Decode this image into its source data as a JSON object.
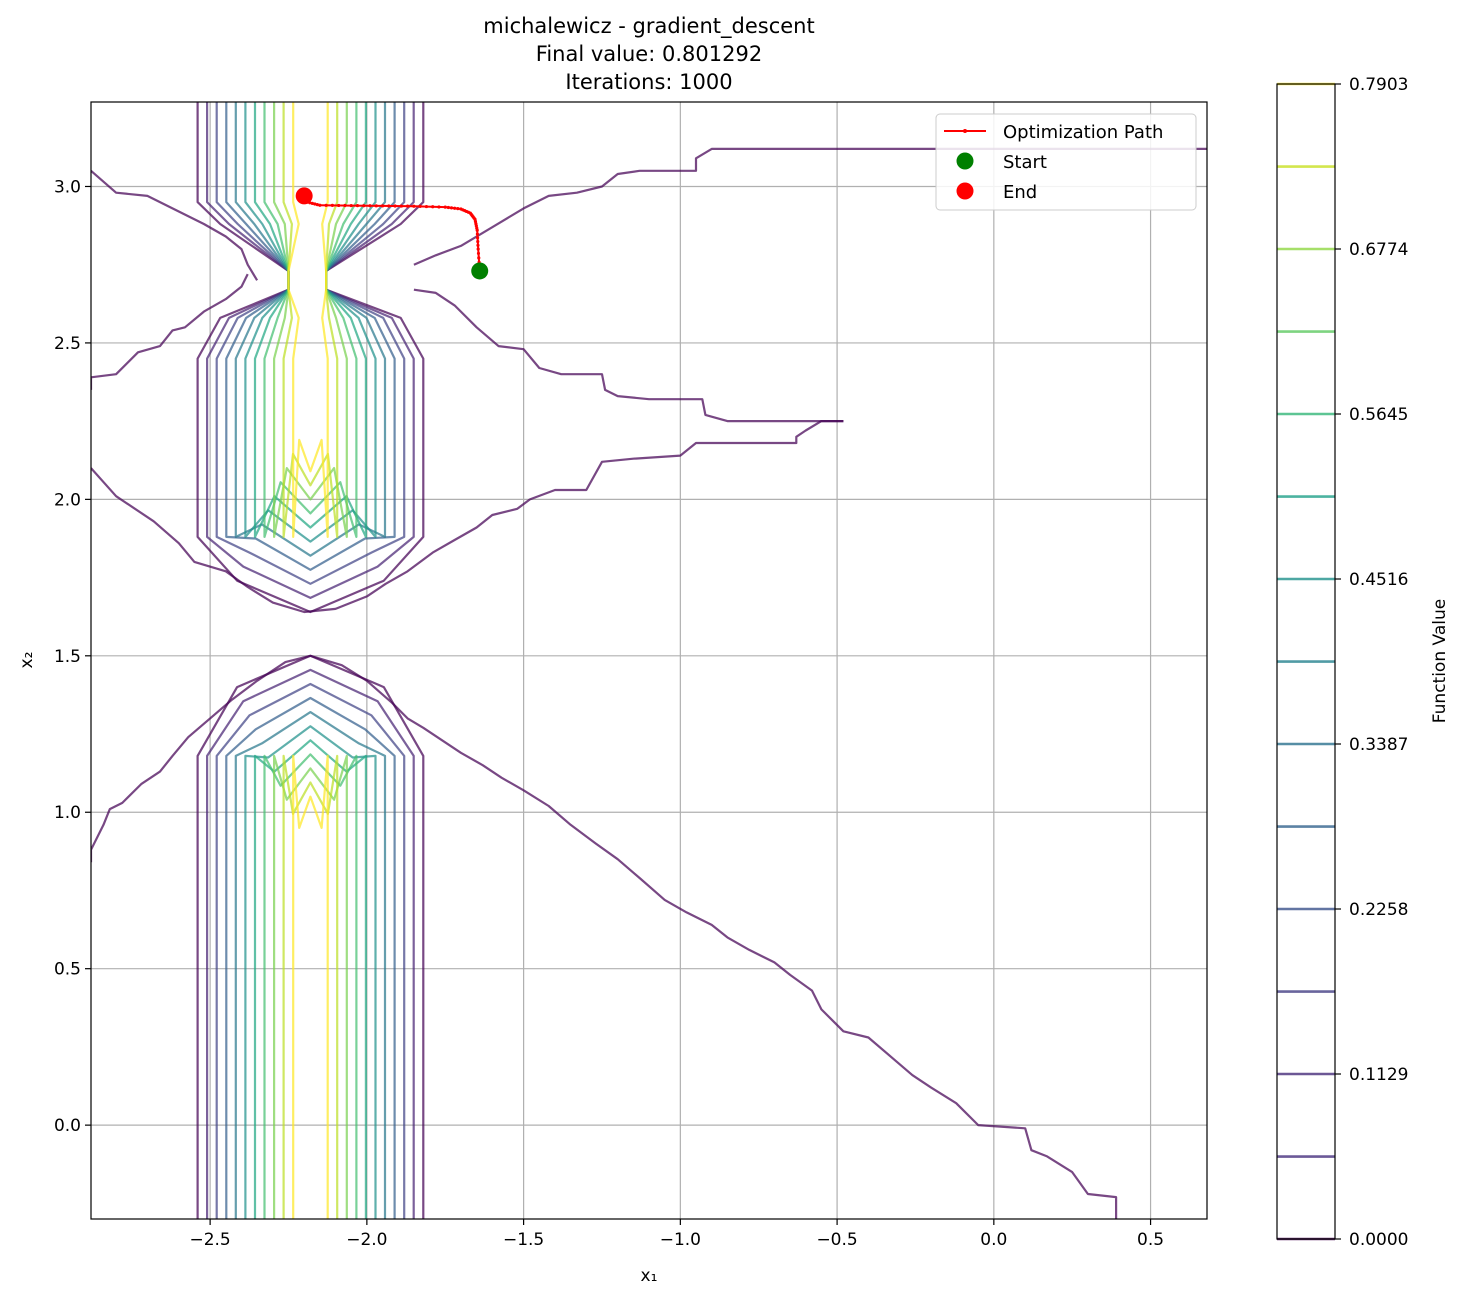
{
  "chart_data": {
    "type": "contour",
    "title_lines": [
      "michalewicz - gradient_descent",
      "Final value: 0.801292",
      "Iterations: 1000"
    ],
    "xlabel": "x₁",
    "ylabel": "x₂",
    "xlim": [
      -2.88,
      0.68
    ],
    "ylim": [
      -0.3,
      3.27
    ],
    "x_ticks": [
      -2.5,
      -2.0,
      -1.5,
      -1.0,
      -0.5,
      0.0,
      0.5
    ],
    "x_tick_labels": [
      "−2.5",
      "−2.0",
      "−1.5",
      "−1.0",
      "−0.5",
      "0.0",
      "0.5"
    ],
    "y_ticks": [
      0.0,
      0.5,
      1.0,
      1.5,
      2.0,
      2.5,
      3.0
    ],
    "y_tick_labels": [
      "0.0",
      "0.5",
      "1.0",
      "1.5",
      "2.0",
      "2.5",
      "3.0"
    ],
    "grid": true,
    "colorbar": {
      "label": "Function Value",
      "range": [
        0.0,
        0.7903
      ],
      "tick_values": [
        0.0,
        0.1129,
        0.2258,
        0.3387,
        0.4516,
        0.5645,
        0.6774,
        0.7903
      ],
      "tick_labels": [
        "0.0000",
        "0.1129",
        "0.2258",
        "0.3387",
        "0.4516",
        "0.5645",
        "0.6774",
        "0.7903"
      ],
      "levels": [
        0.0,
        0.0564,
        0.1129,
        0.1693,
        0.2258,
        0.2822,
        0.3387,
        0.3951,
        0.4516,
        0.508,
        0.5645,
        0.6209,
        0.6774,
        0.7338,
        0.7903
      ],
      "level_colors": [
        "#440154",
        "#482475",
        "#414487",
        "#355f8d",
        "#2a788e",
        "#21918c",
        "#22a884",
        "#44bf70",
        "#7ad151",
        "#bddf26",
        "#fde725"
      ]
    },
    "legend": {
      "placement": "top-right",
      "entries": [
        {
          "label": "Optimization Path",
          "color": "#ff0000",
          "marker": "line-with-dots"
        },
        {
          "label": "Start",
          "color": "#008000",
          "marker": "circle"
        },
        {
          "label": "End",
          "color": "#ff0000",
          "marker": "circle"
        }
      ]
    },
    "start_point": {
      "x": -1.64,
      "y": 2.73
    },
    "end_point": {
      "x": -2.2,
      "y": 2.97
    },
    "optimization_path": [
      [
        -1.64,
        2.73
      ],
      [
        -1.645,
        2.8
      ],
      [
        -1.648,
        2.86
      ],
      [
        -1.655,
        2.895
      ],
      [
        -1.67,
        2.915
      ],
      [
        -1.7,
        2.928
      ],
      [
        -1.75,
        2.934
      ],
      [
        -1.85,
        2.937
      ],
      [
        -1.95,
        2.938
      ],
      [
        -2.05,
        2.939
      ],
      [
        -2.15,
        2.94
      ],
      [
        -2.19,
        2.95
      ],
      [
        -2.2,
        2.97
      ]
    ],
    "valley_columns": [
      {
        "center_x": -2.18,
        "levels": 11,
        "level_step_x": 0.04
      }
    ],
    "contour_band_bounds": {
      "upper_band": {
        "y_bottom": 1.64,
        "y_top": 3.27
      },
      "lower_band": {
        "y_bottom": -0.3,
        "y_top": 1.5
      }
    },
    "outer_contours": [
      [
        [
          -2.88,
          3.05
        ],
        [
          -2.8,
          2.98
        ],
        [
          -2.7,
          2.97
        ],
        [
          -2.62,
          2.93
        ],
        [
          -2.52,
          2.88
        ],
        [
          -2.45,
          2.84
        ],
        [
          -2.4,
          2.8
        ],
        [
          -2.38,
          2.75
        ],
        [
          -2.35,
          2.7
        ]
      ],
      [
        [
          -2.88,
          2.35
        ],
        [
          -2.88,
          2.39
        ],
        [
          -2.8,
          2.4
        ],
        [
          -2.73,
          2.47
        ],
        [
          -2.66,
          2.49
        ],
        [
          -2.62,
          2.54
        ],
        [
          -2.58,
          2.55
        ],
        [
          -2.52,
          2.6
        ],
        [
          -2.45,
          2.64
        ],
        [
          -2.4,
          2.68
        ],
        [
          -2.38,
          2.72
        ]
      ],
      [
        [
          -1.85,
          2.67
        ],
        [
          -1.78,
          2.66
        ],
        [
          -1.72,
          2.62
        ],
        [
          -1.65,
          2.55
        ],
        [
          -1.58,
          2.49
        ],
        [
          -1.5,
          2.48
        ],
        [
          -1.45,
          2.42
        ],
        [
          -1.38,
          2.4
        ],
        [
          -1.25,
          2.4
        ],
        [
          -1.24,
          2.35
        ],
        [
          -1.2,
          2.33
        ],
        [
          -1.1,
          2.32
        ],
        [
          -0.93,
          2.32
        ],
        [
          -0.92,
          2.27
        ],
        [
          -0.85,
          2.25
        ],
        [
          -0.48,
          2.25
        ]
      ],
      [
        [
          -1.85,
          2.75
        ],
        [
          -1.78,
          2.78
        ],
        [
          -1.7,
          2.81
        ],
        [
          -1.6,
          2.87
        ],
        [
          -1.5,
          2.93
        ],
        [
          -1.42,
          2.97
        ],
        [
          -1.33,
          2.98
        ],
        [
          -1.25,
          3.0
        ],
        [
          -1.2,
          3.04
        ],
        [
          -1.13,
          3.05
        ],
        [
          -1.0,
          3.05
        ],
        [
          -0.95,
          3.05
        ],
        [
          -0.95,
          3.09
        ],
        [
          -0.9,
          3.12
        ],
        [
          -0.5,
          3.12
        ],
        [
          0.68,
          3.12
        ]
      ],
      [
        [
          -0.48,
          2.25
        ],
        [
          -0.55,
          2.25
        ],
        [
          -0.6,
          2.22
        ],
        [
          -0.63,
          2.2
        ],
        [
          -0.63,
          2.18
        ],
        [
          -0.75,
          2.18
        ],
        [
          -0.95,
          2.18
        ],
        [
          -1.0,
          2.14
        ],
        [
          -1.15,
          2.13
        ],
        [
          -1.25,
          2.12
        ],
        [
          -1.3,
          2.03
        ],
        [
          -1.4,
          2.03
        ],
        [
          -1.48,
          2.0
        ],
        [
          -1.52,
          1.97
        ],
        [
          -1.6,
          1.95
        ],
        [
          -1.65,
          1.91
        ],
        [
          -1.72,
          1.87
        ],
        [
          -1.79,
          1.83
        ],
        [
          -1.87,
          1.77
        ],
        [
          -1.94,
          1.73
        ],
        [
          -2.0,
          1.69
        ],
        [
          -2.1,
          1.65
        ],
        [
          -2.2,
          1.64
        ],
        [
          -2.3,
          1.67
        ],
        [
          -2.38,
          1.72
        ],
        [
          -2.45,
          1.77
        ],
        [
          -2.55,
          1.8
        ],
        [
          -2.6,
          1.86
        ],
        [
          -2.68,
          1.93
        ],
        [
          -2.8,
          2.01
        ],
        [
          -2.88,
          2.1
        ]
      ],
      [
        [
          -2.88,
          0.84
        ],
        [
          -2.88,
          0.88
        ],
        [
          -2.84,
          0.96
        ],
        [
          -2.82,
          1.01
        ],
        [
          -2.78,
          1.03
        ],
        [
          -2.72,
          1.09
        ],
        [
          -2.66,
          1.13
        ],
        [
          -2.62,
          1.18
        ],
        [
          -2.57,
          1.24
        ],
        [
          -2.5,
          1.3
        ],
        [
          -2.43,
          1.36
        ],
        [
          -2.35,
          1.42
        ],
        [
          -2.26,
          1.48
        ],
        [
          -2.18,
          1.5
        ],
        [
          -2.08,
          1.47
        ],
        [
          -2.0,
          1.42
        ],
        [
          -1.92,
          1.35
        ],
        [
          -1.87,
          1.3
        ],
        [
          -1.82,
          1.27
        ],
        [
          -1.76,
          1.23
        ],
        [
          -1.7,
          1.19
        ],
        [
          -1.63,
          1.15
        ],
        [
          -1.57,
          1.11
        ],
        [
          -1.5,
          1.07
        ],
        [
          -1.42,
          1.02
        ],
        [
          -1.35,
          0.96
        ],
        [
          -1.27,
          0.9
        ],
        [
          -1.2,
          0.85
        ],
        [
          -1.13,
          0.79
        ],
        [
          -1.05,
          0.72
        ],
        [
          -0.98,
          0.68
        ],
        [
          -0.9,
          0.64
        ],
        [
          -0.85,
          0.6
        ],
        [
          -0.78,
          0.56
        ],
        [
          -0.7,
          0.52
        ],
        [
          -0.65,
          0.48
        ],
        [
          -0.58,
          0.43
        ],
        [
          -0.55,
          0.37
        ],
        [
          -0.48,
          0.3
        ],
        [
          -0.4,
          0.28
        ],
        [
          -0.33,
          0.22
        ],
        [
          -0.26,
          0.16
        ],
        [
          -0.2,
          0.12
        ],
        [
          -0.12,
          0.07
        ],
        [
          -0.05,
          0.0
        ],
        [
          0.1,
          -0.01
        ],
        [
          0.12,
          -0.08
        ],
        [
          0.17,
          -0.1
        ],
        [
          0.25,
          -0.15
        ],
        [
          0.3,
          -0.22
        ],
        [
          0.39,
          -0.23
        ],
        [
          0.39,
          -0.3
        ]
      ]
    ]
  }
}
